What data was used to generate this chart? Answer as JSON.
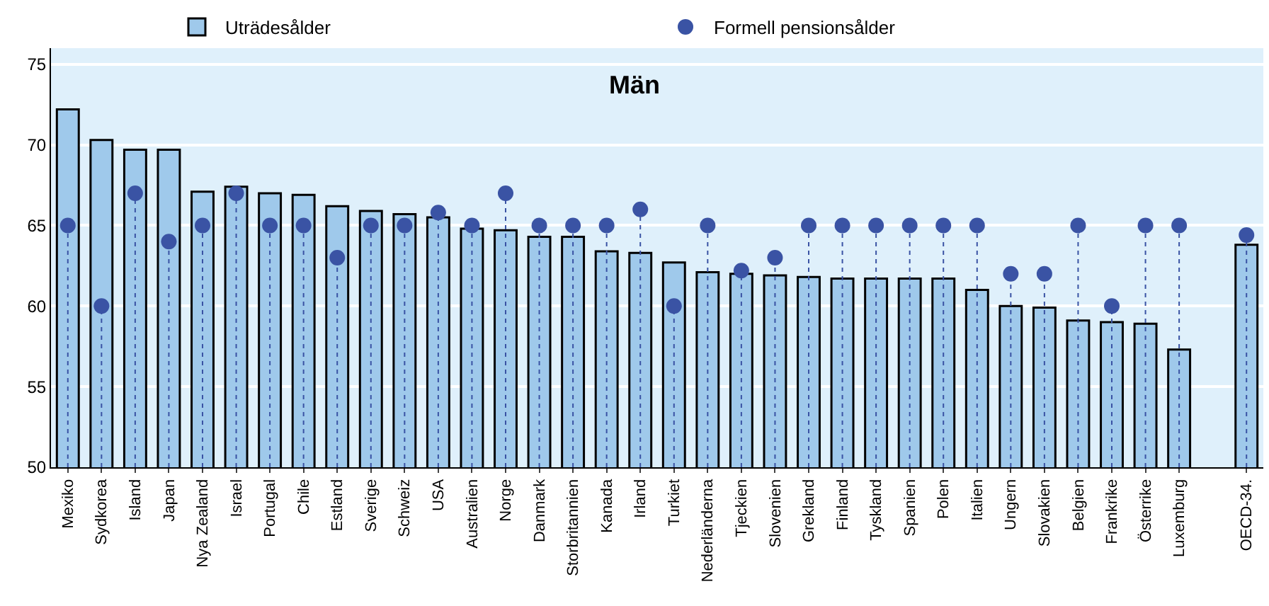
{
  "chart_data": {
    "type": "bar",
    "title": "Män",
    "categories": [
      "Mexiko",
      "Sydkorea",
      "Island",
      "Japan",
      "Nya Zealand",
      "Israel",
      "Portugal",
      "Chile",
      "Estland",
      "Sverige",
      "Schweiz",
      "USA",
      "Australien",
      "Norge",
      "Danmark",
      "Storbritannien",
      "Kanada",
      "Irland",
      "Turkiet",
      "Nederländerna",
      "Tjeckien",
      "Slovenien",
      "Grekland",
      "Finland",
      "Tyskland",
      "Spanien",
      "Polen",
      "Italien",
      "Ungern",
      "Slovakien",
      "Belgien",
      "Frankrike",
      "Österrike",
      "Luxemburg",
      null,
      "OECD-34."
    ],
    "series": [
      {
        "name": "Uträdesålder",
        "color": "#9fc9eb",
        "values": [
          72.2,
          70.3,
          69.7,
          69.7,
          67.1,
          67.4,
          67.0,
          66.9,
          66.2,
          65.9,
          65.7,
          65.5,
          64.8,
          64.7,
          64.3,
          64.3,
          63.4,
          63.3,
          62.7,
          62.1,
          62.0,
          61.9,
          61.8,
          61.7,
          61.7,
          61.7,
          61.7,
          61.0,
          60.0,
          59.9,
          59.1,
          59.0,
          58.9,
          57.3,
          null,
          63.8
        ]
      },
      {
        "name": "Formell pensionsålder",
        "type": "lollipop",
        "color": "#3a53a4",
        "marker": "circle",
        "line_style": "dotted",
        "values": [
          65,
          60,
          67,
          64,
          65,
          67,
          65,
          65,
          63,
          65,
          65,
          65.8,
          65,
          67,
          65,
          65,
          65,
          66,
          60,
          65,
          62.2,
          63,
          65,
          65,
          65,
          65,
          65,
          65,
          62,
          62,
          65,
          60,
          65,
          65,
          null,
          64.4
        ]
      }
    ],
    "ylim": [
      50,
      76
    ],
    "yticks": [
      50,
      55,
      60,
      65,
      70,
      75
    ],
    "grid": "y",
    "legend": "top"
  }
}
